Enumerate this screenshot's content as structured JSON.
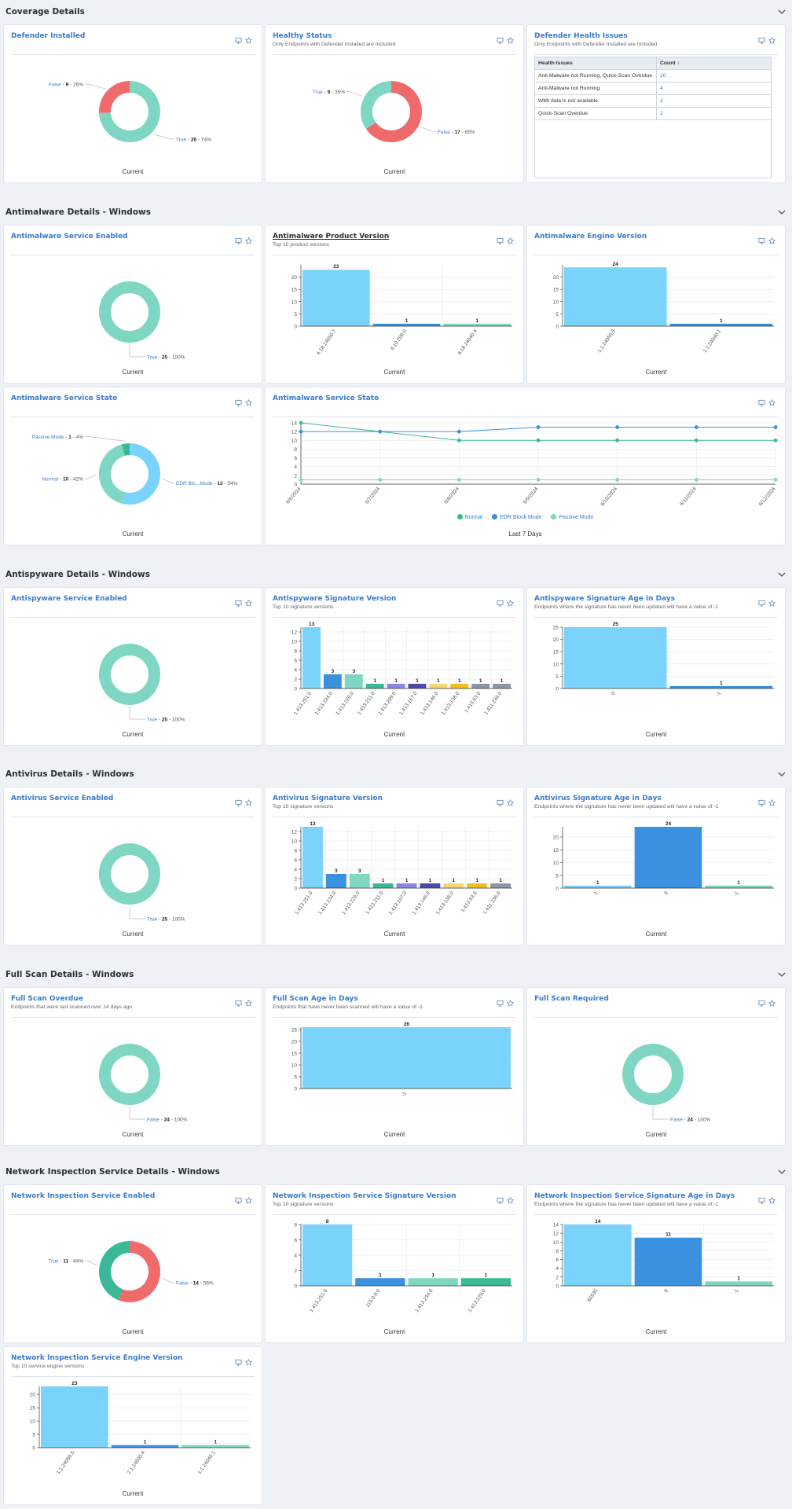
{
  "colors": {
    "lightblue": "#79d3fb",
    "blue": "#3a91df",
    "teal": "#7fd6c2",
    "green": "#3ab897",
    "violet": "#8b86e6",
    "indigo": "#4a4aa8",
    "yellow": "#f7d774",
    "gold": "#f0c020",
    "slate": "#8a96a8",
    "red": "#ef6b6b",
    "grid": "#e6e6e6",
    "axis": "#333"
  },
  "sections": [
    {
      "id": "coverage",
      "title": "Coverage Details"
    },
    {
      "id": "antimalware",
      "title": "Antimalware Details - Windows"
    },
    {
      "id": "antispyware",
      "title": "Antispyware Details - Windows"
    },
    {
      "id": "antivirus",
      "title": "Antivirus Details - Windows"
    },
    {
      "id": "fullscan",
      "title": "Full Scan Details - Windows"
    },
    {
      "id": "network",
      "title": "Network Inspection Service Details - Windows"
    }
  ],
  "cards": {
    "defender_installed": {
      "title": "Defender Installed",
      "subtitle": "",
      "footer": "Current"
    },
    "healthy_status": {
      "title": "Healthy Status",
      "subtitle": "Only Endpoints with Defender Installed are Included",
      "footer": "Current"
    },
    "defender_health": {
      "title": "Defender Health Issues",
      "subtitle": "Only Endpoints with Defender Installed are Included",
      "table": {
        "headers": [
          "Health Issues",
          "Count ↓"
        ],
        "rows": [
          [
            "Anti-Malware not Running, Quick-Scan Overdue",
            "10"
          ],
          [
            "Anti-Malware not Running",
            "4"
          ],
          [
            "WMI data is not available",
            "2"
          ],
          [
            "Quick-Scan Overdue",
            "1"
          ]
        ]
      }
    },
    "am_enabled": {
      "title": "Antimalware Service Enabled",
      "subtitle": "",
      "footer": "Current"
    },
    "am_product": {
      "title": "Antimalware Product Version",
      "subtitle": "Top 10 product versions",
      "footer": "Current"
    },
    "am_engine": {
      "title": "Antimalware Engine Version",
      "subtitle": "",
      "footer": "Current"
    },
    "am_state": {
      "title": "Antimalware Service State",
      "subtitle": "",
      "footer": "Current"
    },
    "am_state_line": {
      "title": "Antimalware Service State",
      "subtitle": "",
      "footer": "Last 7 Days"
    },
    "as_enabled": {
      "title": "Antispyware Service Enabled",
      "subtitle": "",
      "footer": "Current"
    },
    "as_sig": {
      "title": "Antispyware Signature Version",
      "subtitle": "Top 10 signature versions",
      "footer": "Current"
    },
    "as_age": {
      "title": "Antispyware Signature Age in Days",
      "subtitle": "Endpoints where the signature has never been updated will have a value of -1",
      "footer": "Current"
    },
    "av_enabled": {
      "title": "Antivirus Service Enabled",
      "subtitle": "",
      "footer": "Current"
    },
    "av_sig": {
      "title": "Antivirus Signature Version",
      "subtitle": "Top 10 signature versions",
      "footer": "Current"
    },
    "av_age": {
      "title": "Antivirus Signature Age in Days",
      "subtitle": "Endpoints where the signature has never been updated will have a value of -1",
      "footer": "Current"
    },
    "fs_overdue": {
      "title": "Full Scan Overdue",
      "subtitle": "Endpoints that were last scanned over 14 days ago",
      "footer": "Current"
    },
    "fs_age": {
      "title": "Full Scan Age in Days",
      "subtitle": "Endpoints that have never been scanned will have a value of -1",
      "footer": "Current"
    },
    "fs_required": {
      "title": "Full Scan Required",
      "subtitle": "",
      "footer": "Current"
    },
    "ni_enabled": {
      "title": "Network Inspection Service Enabled",
      "subtitle": "",
      "footer": "Current"
    },
    "ni_sig": {
      "title": "Network Inspection Service Signature Version",
      "subtitle": "Top 10 signature versions",
      "footer": "Current"
    },
    "ni_age": {
      "title": "Network Inspection Service Signature Age in Days",
      "subtitle": "Endpoints where the signature has never been updated will have a value of -1",
      "footer": "Current"
    },
    "ni_engine": {
      "title": "Network Inspection Service Engine Version",
      "subtitle": "Top 10 service engine versions",
      "footer": "Current"
    }
  },
  "chart_data": [
    {
      "id": "defender_installed",
      "type": "pie",
      "slices": [
        {
          "label": "True",
          "value": 26,
          "pct": "74%",
          "color": "teal"
        },
        {
          "label": "False",
          "value": 9,
          "pct": "26%",
          "color": "red"
        }
      ]
    },
    {
      "id": "healthy_status",
      "type": "pie",
      "slices": [
        {
          "label": "False",
          "value": 17,
          "pct": "65%",
          "color": "red"
        },
        {
          "label": "True",
          "value": 9,
          "pct": "35%",
          "color": "teal"
        }
      ]
    },
    {
      "id": "am_enabled",
      "type": "pie",
      "slices": [
        {
          "label": "True",
          "value": 25,
          "pct": "100%",
          "color": "teal"
        }
      ]
    },
    {
      "id": "am_product",
      "type": "bar",
      "categories": [
        "4.18.24050.7",
        "4.10.209.0",
        "4.18.24040.4"
      ],
      "values": [
        23,
        1,
        1
      ],
      "colors": [
        "lightblue",
        "blue",
        "teal"
      ],
      "ylim": [
        0,
        25
      ],
      "yticks": [
        0,
        5,
        10,
        15,
        20
      ]
    },
    {
      "id": "am_engine",
      "type": "bar",
      "categories": [
        "1.1.24050.5",
        "1.1.24040.1"
      ],
      "values": [
        24,
        1
      ],
      "colors": [
        "lightblue",
        "blue"
      ],
      "ylim": [
        0,
        25
      ],
      "yticks": [
        0,
        5,
        10,
        15,
        20
      ]
    },
    {
      "id": "am_state",
      "type": "pie",
      "slices": [
        {
          "label": "EDR Blo...Mode",
          "value": 13,
          "pct": "54%",
          "color": "lightblue"
        },
        {
          "label": "Normal",
          "value": 10,
          "pct": "42%",
          "color": "teal"
        },
        {
          "label": "Passive Mode",
          "value": 1,
          "pct": "4%",
          "color": "green"
        }
      ]
    },
    {
      "id": "am_state_line",
      "type": "line",
      "x": [
        "6/6/2024",
        "6/7/2024",
        "6/8/2024",
        "6/9/2024",
        "6/10/2024",
        "6/11/2024",
        "6/12/2024"
      ],
      "ylim": [
        0,
        14
      ],
      "yticks": [
        0,
        2,
        4,
        6,
        8,
        10,
        12,
        14
      ],
      "series": [
        {
          "name": "Normal",
          "values": [
            14,
            12,
            10,
            10,
            10,
            10,
            10
          ],
          "color": "#3ab897"
        },
        {
          "name": "EDR Block Mode",
          "values": [
            12,
            12,
            12,
            13,
            13,
            13,
            13
          ],
          "color": "#3a91df"
        },
        {
          "name": "Passive Mode",
          "values": [
            1,
            1,
            1,
            1,
            1,
            1,
            1
          ],
          "color": "#7fd6c2"
        }
      ]
    },
    {
      "id": "as_enabled",
      "type": "pie",
      "slices": [
        {
          "label": "True",
          "value": 25,
          "pct": "100%",
          "color": "teal"
        }
      ]
    },
    {
      "id": "as_sig",
      "type": "bar",
      "categories": [
        "1.413.251.0",
        "1.413.234.0",
        "1.413.229.0",
        "1.413.211.0",
        "1.413.209.0",
        "1.413.167.0",
        "1.413.146.0",
        "1.413.138.0",
        "1.413.63.0",
        "1.411.236.0"
      ],
      "values": [
        13,
        3,
        3,
        1,
        1,
        1,
        1,
        1,
        1,
        1
      ],
      "colors": [
        "lightblue",
        "blue",
        "teal",
        "green",
        "violet",
        "indigo",
        "yellow",
        "gold",
        "slate",
        "slate"
      ],
      "ylim": [
        0,
        13
      ],
      "yticks": [
        0,
        2,
        4,
        6,
        8,
        10,
        12
      ]
    },
    {
      "id": "as_age",
      "type": "bar",
      "categories": [
        "0",
        "-1"
      ],
      "values": [
        25,
        1
      ],
      "colors": [
        "lightblue",
        "blue"
      ],
      "ylim": [
        0,
        25
      ],
      "yticks": [
        0,
        5,
        10,
        15,
        20,
        25
      ]
    },
    {
      "id": "av_enabled",
      "type": "pie",
      "slices": [
        {
          "label": "True",
          "value": 25,
          "pct": "100%",
          "color": "teal"
        }
      ]
    },
    {
      "id": "av_sig",
      "type": "bar",
      "categories": [
        "1.413.251.0",
        "1.413.234.0",
        "1.413.229.0",
        "1.413.211.0",
        "1.413.167.0",
        "1.413.146.0",
        "1.413.138.0",
        "1.413.63.0",
        "1.411.236.0"
      ],
      "values": [
        13,
        3,
        3,
        1,
        1,
        1,
        1,
        1,
        1
      ],
      "colors": [
        "lightblue",
        "blue",
        "teal",
        "green",
        "violet",
        "indigo",
        "yellow",
        "gold",
        "slate"
      ],
      "ylim": [
        0,
        13
      ],
      "yticks": [
        0,
        2,
        4,
        6,
        8,
        10,
        12
      ]
    },
    {
      "id": "av_age",
      "type": "bar",
      "categories": [
        "1",
        "0",
        "-1"
      ],
      "values": [
        1,
        24,
        1
      ],
      "colors": [
        "lightblue",
        "blue",
        "teal"
      ],
      "ylim": [
        0,
        24
      ],
      "yticks": [
        0,
        5,
        10,
        15,
        20
      ]
    },
    {
      "id": "fs_overdue",
      "type": "pie",
      "slices": [
        {
          "label": "False",
          "value": 24,
          "pct": "100%",
          "color": "teal"
        }
      ]
    },
    {
      "id": "fs_age",
      "type": "bar",
      "categories": [
        "-1"
      ],
      "values": [
        26
      ],
      "colors": [
        "lightblue"
      ],
      "ylim": [
        0,
        26
      ],
      "yticks": [
        0,
        5,
        10,
        15,
        20,
        25
      ]
    },
    {
      "id": "fs_required",
      "type": "pie",
      "slices": [
        {
          "label": "False",
          "value": 24,
          "pct": "100%",
          "color": "teal"
        }
      ]
    },
    {
      "id": "ni_enabled",
      "type": "pie",
      "slices": [
        {
          "label": "False",
          "value": 14,
          "pct": "56%",
          "color": "red"
        },
        {
          "label": "True",
          "value": 11,
          "pct": "44%",
          "color": "green"
        }
      ]
    },
    {
      "id": "ni_sig",
      "type": "bar",
      "categories": [
        "1.413.251.0",
        "119.0.0.0",
        "1.413.234.0",
        "1.413.229.0"
      ],
      "values": [
        8,
        1,
        1,
        1
      ],
      "colors": [
        "lightblue",
        "blue",
        "teal",
        "green"
      ],
      "ylim": [
        0,
        8
      ],
      "yticks": [
        0,
        2,
        4,
        6,
        8
      ]
    },
    {
      "id": "ni_age",
      "type": "bar",
      "categories": [
        "65535",
        "0",
        "-1"
      ],
      "values": [
        14,
        11,
        1
      ],
      "colors": [
        "lightblue",
        "blue",
        "teal"
      ],
      "ylim": [
        0,
        14
      ],
      "yticks": [
        0,
        2,
        4,
        6,
        8,
        10,
        12,
        14
      ]
    },
    {
      "id": "ni_engine",
      "type": "bar",
      "categories": [
        "1.1.24050.5",
        "2.1.14600.4",
        "1.1.24040.1"
      ],
      "values": [
        23,
        1,
        1
      ],
      "colors": [
        "lightblue",
        "blue",
        "teal"
      ],
      "ylim": [
        0,
        23
      ],
      "yticks": [
        0,
        5,
        10,
        15,
        20
      ]
    }
  ]
}
